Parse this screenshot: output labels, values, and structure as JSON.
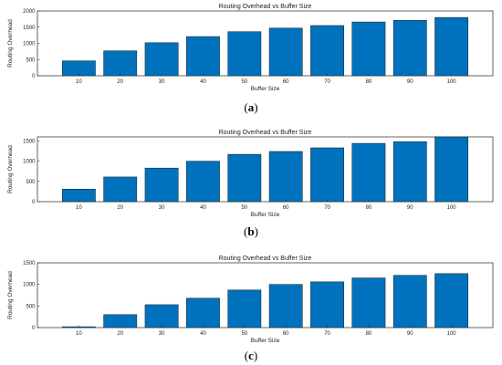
{
  "chart_data": [
    {
      "type": "bar",
      "title": "Routing Overhead vs Buffer Size",
      "xlabel": "Buffer Size",
      "ylabel": "Routing Overhead",
      "categories": [
        "10",
        "20",
        "30",
        "40",
        "50",
        "60",
        "70",
        "80",
        "90",
        "100"
      ],
      "values": [
        460,
        770,
        1020,
        1210,
        1360,
        1470,
        1550,
        1660,
        1710,
        1800
      ],
      "ylim": [
        0,
        2000
      ],
      "yticks": [
        "0",
        "500",
        "1000",
        "1500",
        "2000"
      ],
      "caption_letter": "a",
      "color": "#0072BD",
      "grid": false
    },
    {
      "type": "bar",
      "title": "Routing Overhead vs Buffer Size",
      "xlabel": "Buffer Size",
      "ylabel": "Routing Overhead",
      "categories": [
        "10",
        "20",
        "30",
        "40",
        "50",
        "60",
        "70",
        "80",
        "90",
        "100"
      ],
      "values": [
        310,
        610,
        830,
        1000,
        1170,
        1240,
        1330,
        1440,
        1480,
        1600
      ],
      "ylim": [
        0,
        1600
      ],
      "yticks": [
        "0",
        "500",
        "1000",
        "1500"
      ],
      "caption_letter": "b",
      "color": "#0072BD",
      "grid": false
    },
    {
      "type": "bar",
      "title": "Routing Overhead vs Buffer Size",
      "xlabel": "Buffer Size",
      "ylabel": "Routing Overhead",
      "categories": [
        "10",
        "20",
        "30",
        "40",
        "50",
        "60",
        "70",
        "80",
        "90",
        "100"
      ],
      "values": [
        20,
        300,
        530,
        680,
        870,
        1000,
        1060,
        1150,
        1210,
        1250
      ],
      "ylim": [
        0,
        1500
      ],
      "yticks": [
        "0",
        "500",
        "1000",
        "1500"
      ],
      "caption_letter": "c",
      "color": "#0072BD",
      "grid": false
    }
  ]
}
